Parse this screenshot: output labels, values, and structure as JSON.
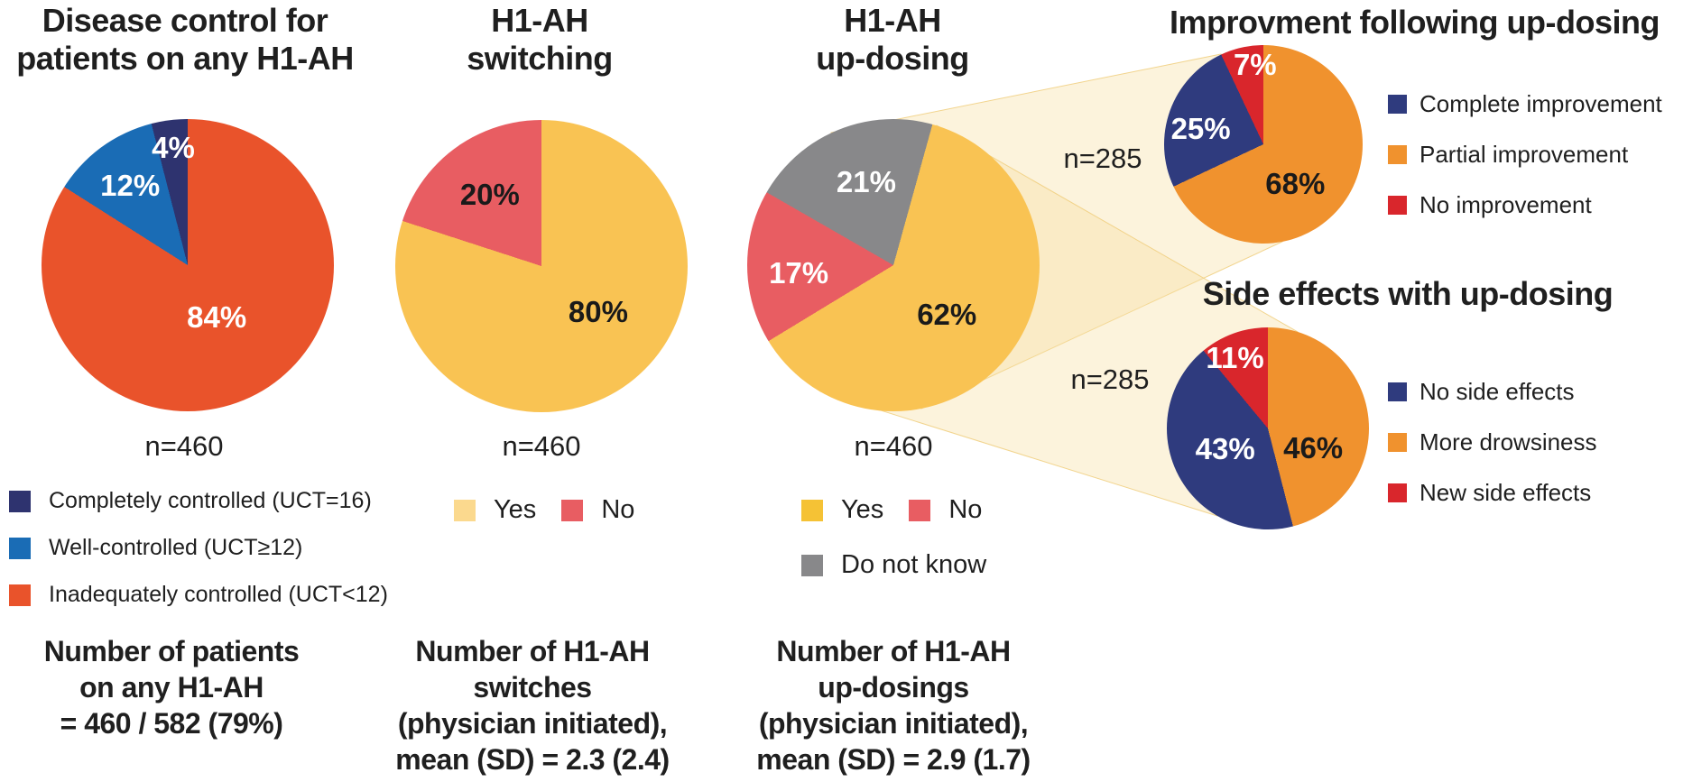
{
  "figure": {
    "background": "#FFFFFF",
    "text_color": "#1F1F1F"
  },
  "beam": {
    "fill": "rgba(247,224,164,0.38)",
    "stroke": "rgba(240,206,125,0.85)"
  },
  "chart_data": [
    {
      "type": "pie",
      "title": "Disease control for\npatients on any H1-AH",
      "n_label": "n=460",
      "rotation_deg": 0,
      "slices": [
        {
          "legend_label": "Inadequately controlled (UCT<12)",
          "pct": 84,
          "display": "84%",
          "color": "#E9532B",
          "text_color": "#FFFFFF",
          "label_angle_deg": 151,
          "label_r_frac": 0.41
        },
        {
          "legend_label": "Well-controlled (UCT≥12)",
          "pct": 12,
          "display": "12%",
          "color": "#1A6CB5",
          "text_color": "#FFFFFF",
          "label_angle_deg": 324,
          "label_r_frac": 0.67
        },
        {
          "legend_label": "Completely controlled (UCT=16)",
          "pct": 4,
          "display": "4%",
          "color": "#2E336F",
          "text_color": "#FFFFFF",
          "label_angle_deg": 353,
          "label_r_frac": 0.81
        }
      ],
      "legend": [
        {
          "label": "Completely controlled (UCT=16)",
          "color": "#2E336F"
        },
        {
          "label": "Well-controlled (UCT≥12)",
          "color": "#1A6CB5"
        },
        {
          "label": "Inadequately controlled (UCT<12)",
          "color": "#E9532B"
        }
      ],
      "footnote": "Number of patients\non any H1-AH\n= 460 / 582 (79%)"
    },
    {
      "type": "pie",
      "title": "H1-AH\nswitching",
      "n_label": "n=460",
      "rotation_deg": 0,
      "slices": [
        {
          "legend_label": "Yes",
          "pct": 80,
          "display": "80%",
          "color": "#F9C353",
          "text_color": "#1A1A1A",
          "label_angle_deg": 129,
          "label_r_frac": 0.5
        },
        {
          "legend_label": "No",
          "pct": 20,
          "display": "20%",
          "color": "#E85D62",
          "text_color": "#1A1A1A",
          "label_angle_deg": 324,
          "label_r_frac": 0.6
        }
      ],
      "legend": [
        {
          "label": "Yes",
          "color": "#FBD98E"
        },
        {
          "label": "No",
          "color": "#E85D62"
        }
      ],
      "footnote": "Number of H1-AH\nswitches\n(physician initiated),\nmean (SD) = 2.3 (2.4)"
    },
    {
      "type": "pie",
      "title": "H1-AH\nup-dosing",
      "n_label": "n=460",
      "rotation_deg": 15.5,
      "slices": [
        {
          "legend_label": "Yes",
          "pct": 62,
          "display": "62%",
          "color": "#F9C353",
          "text_color": "#1A1A1A",
          "label_angle_deg": 133,
          "label_r_frac": 0.5
        },
        {
          "legend_label": "No",
          "pct": 17,
          "display": "17%",
          "color": "#E85D62",
          "text_color": "#FFFFFF",
          "label_angle_deg": 265,
          "label_r_frac": 0.65
        },
        {
          "legend_label": "Do not know",
          "pct": 21,
          "display": "21%",
          "color": "#88888A",
          "text_color": "#FFFFFF",
          "label_angle_deg": 342,
          "label_r_frac": 0.6
        }
      ],
      "legend": [
        {
          "label": "Yes",
          "color": "#F5C235"
        },
        {
          "label": "No",
          "color": "#E85D62"
        },
        {
          "label": "Do not know",
          "color": "#88888A"
        }
      ],
      "footnote": "Number of H1-AH\nup-dosings\n(physician initiated),\nmean (SD) = 2.9 (1.7)"
    },
    {
      "type": "pie",
      "title": "Improvment following up-dosing",
      "n_label": "n=285",
      "rotation_deg": 0,
      "slices": [
        {
          "legend_label": "Partial improvement",
          "pct": 68,
          "display": "68%",
          "color": "#F0922E",
          "text_color": "#1A1A1A",
          "label_angle_deg": 141,
          "label_r_frac": 0.51
        },
        {
          "legend_label": "Complete improvement",
          "pct": 25,
          "display": "25%",
          "color": "#2F3B7E",
          "text_color": "#FFFFFF",
          "label_angle_deg": 284,
          "label_r_frac": 0.65
        },
        {
          "legend_label": "No improvement",
          "pct": 7,
          "display": "7%",
          "color": "#D9262C",
          "text_color": "#FFFFFF",
          "label_angle_deg": 354,
          "label_r_frac": 0.8
        }
      ],
      "legend": [
        {
          "label": "Complete improvement",
          "color": "#2F3B7E"
        },
        {
          "label": "Partial improvement",
          "color": "#F0922E"
        },
        {
          "label": "No improvement",
          "color": "#D9262C"
        }
      ]
    },
    {
      "type": "pie",
      "title": "Side effects with up-dosing",
      "n_label": "n=285",
      "rotation_deg": 0,
      "slices": [
        {
          "legend_label": "More drowsiness",
          "pct": 46,
          "display": "46%",
          "color": "#F0922E",
          "text_color": "#1A1A1A",
          "label_angle_deg": 114,
          "label_r_frac": 0.49
        },
        {
          "legend_label": "No side effects",
          "pct": 43,
          "display": "43%",
          "color": "#2F3B7E",
          "text_color": "#FFFFFF",
          "label_angle_deg": 244,
          "label_r_frac": 0.47
        },
        {
          "legend_label": "New side effects",
          "pct": 11,
          "display": "11%",
          "color": "#D9262C",
          "text_color": "#FFFFFF",
          "label_angle_deg": 335,
          "label_r_frac": 0.77
        }
      ],
      "legend": [
        {
          "label": "No side effects",
          "color": "#2F3B7E"
        },
        {
          "label": "More drowsiness",
          "color": "#F0922E"
        },
        {
          "label": "New side effects",
          "color": "#D9262C"
        }
      ]
    }
  ]
}
